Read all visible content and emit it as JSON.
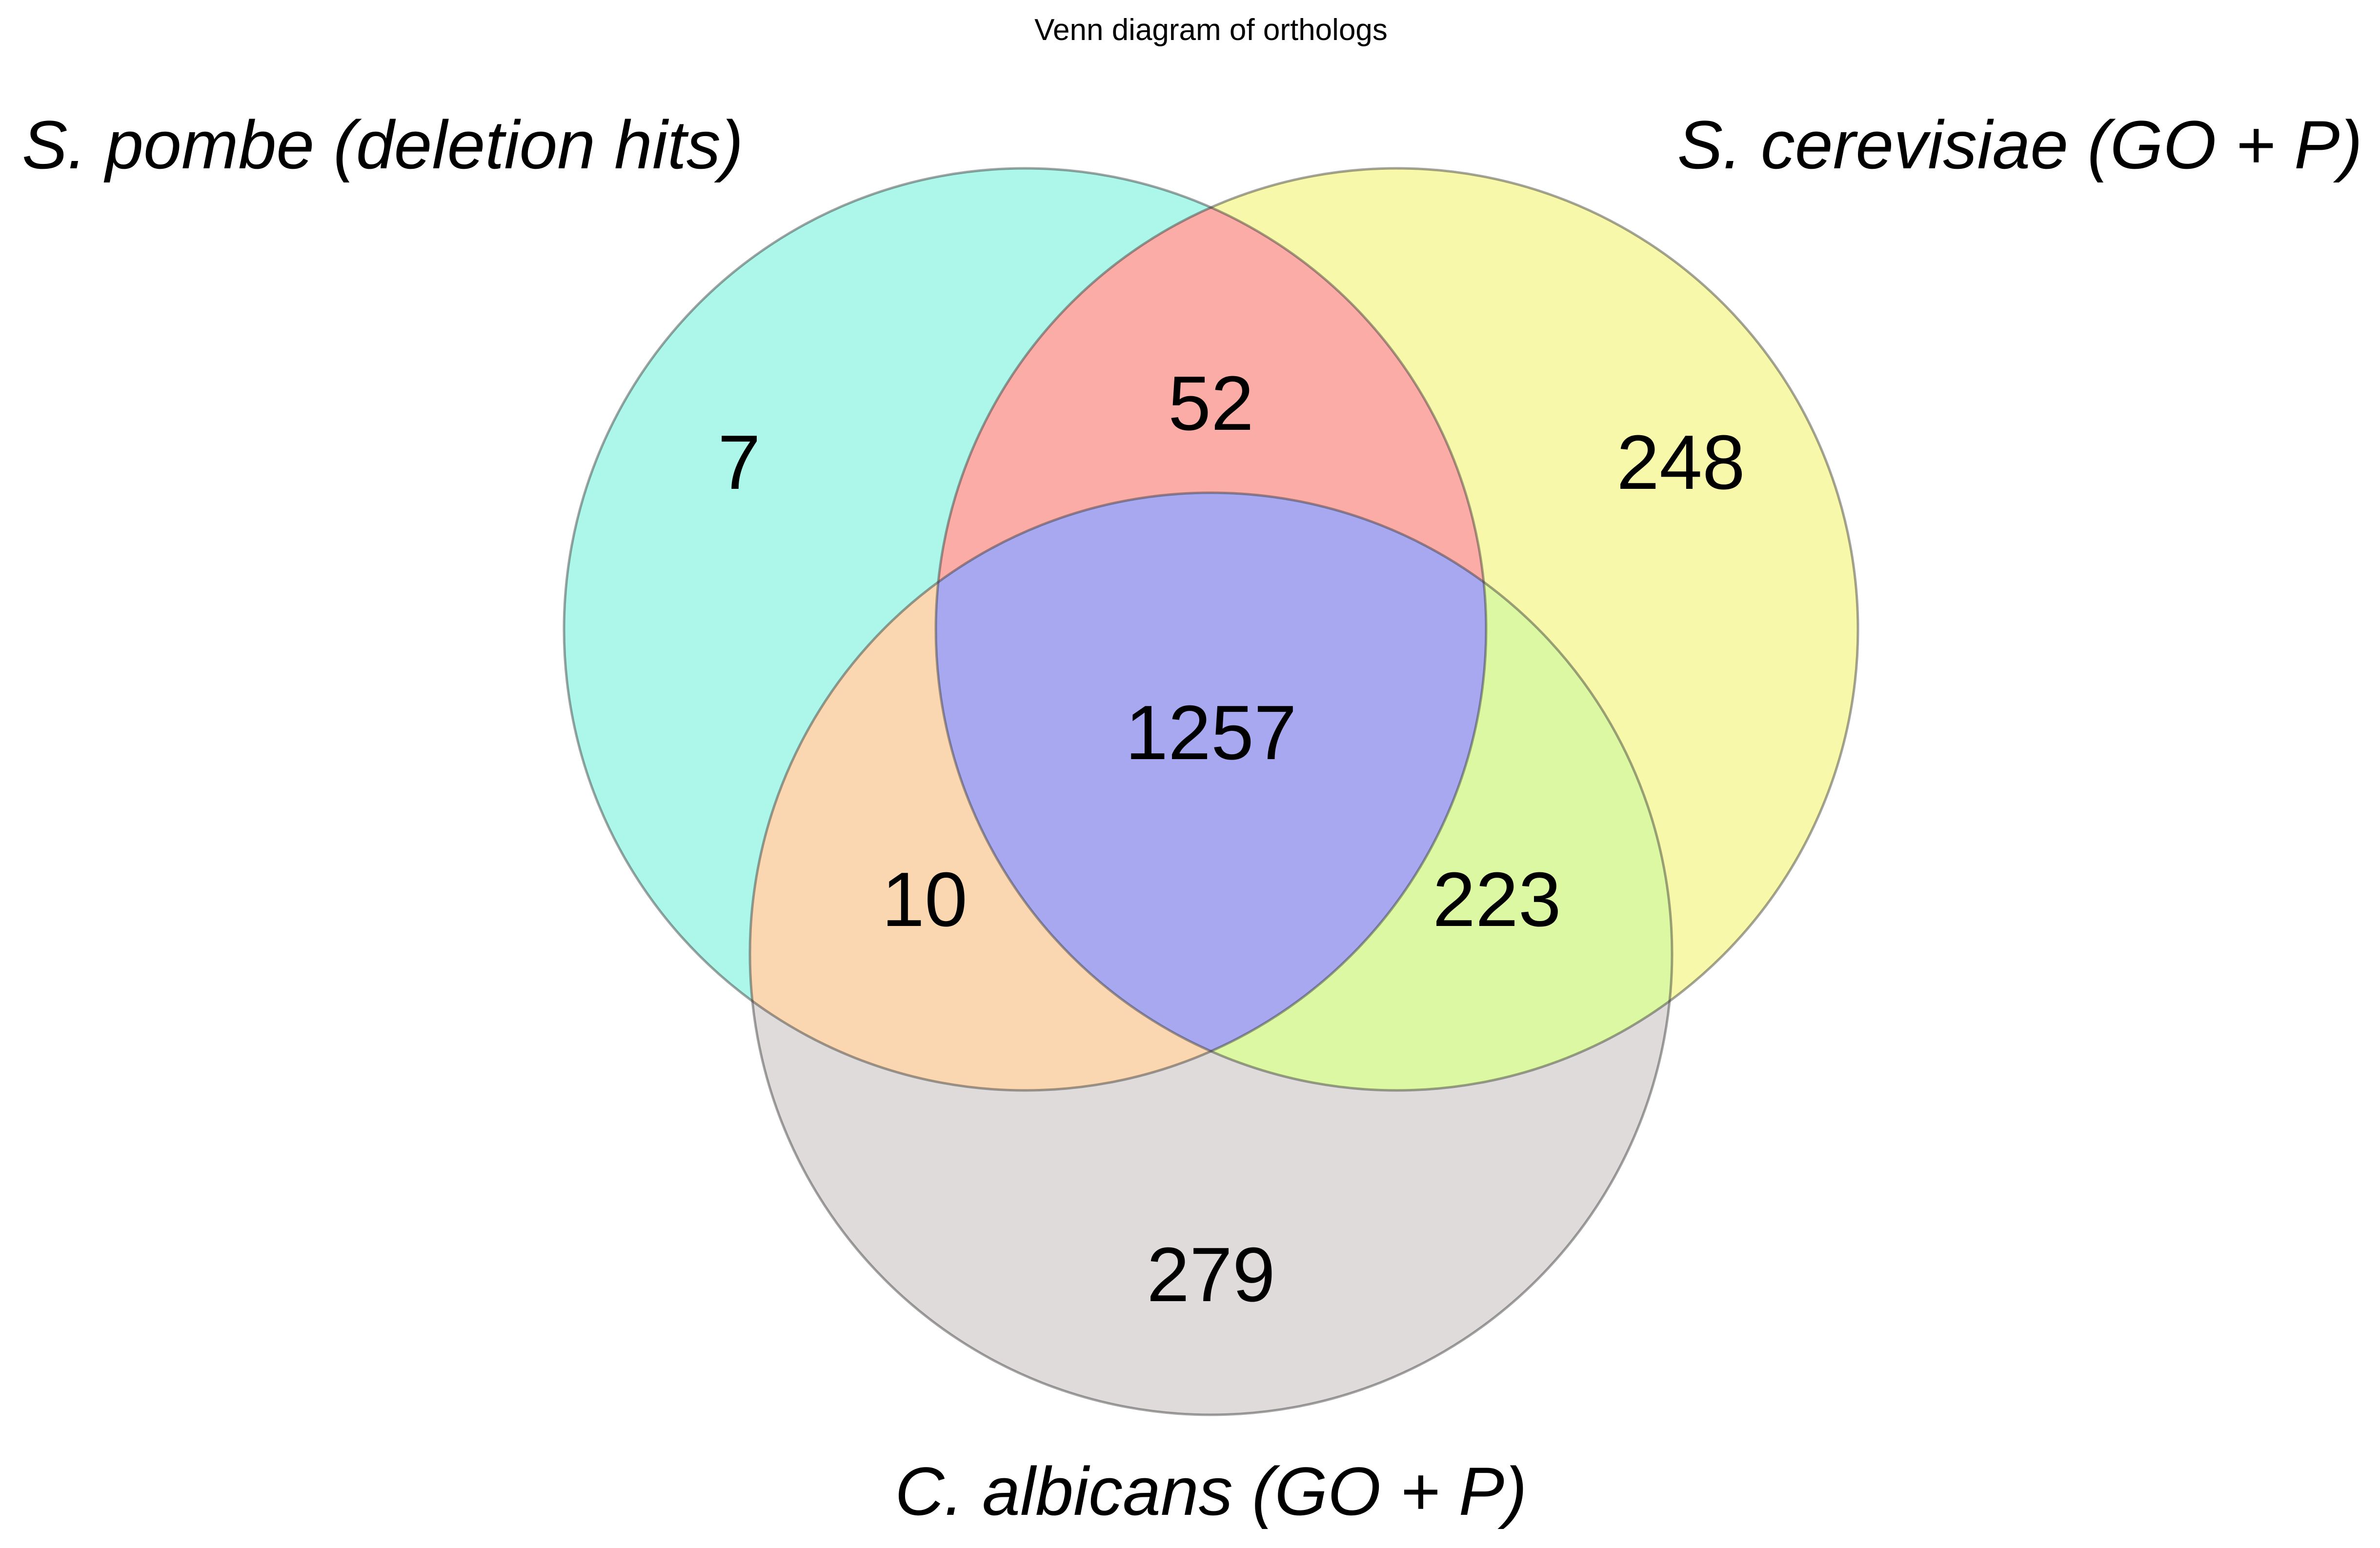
{
  "title": "Venn diagram of orthologs",
  "sets": [
    {
      "key": "A",
      "label": "S. pombe (deletion hits)"
    },
    {
      "key": "B",
      "label": "S. cerevisiae (GO + P)"
    },
    {
      "key": "C",
      "label": "C. albicans (GO + P)"
    }
  ],
  "regions": {
    "A_only": "7",
    "B_only": "248",
    "C_only": "279",
    "AB_only": "52",
    "AC_only": "10",
    "BC_only": "223",
    "ABC": "1257"
  },
  "chart_data": {
    "type": "venn",
    "title": "Venn diagram of orthologs",
    "sets": [
      "S. pombe (deletion hits)",
      "S. cerevisiae (GO + P)",
      "C. albicans (GO + P)"
    ],
    "subsets": {
      "100": 7,
      "010": 248,
      "001": 279,
      "110": 52,
      "101": 10,
      "011": 223,
      "111": 1257
    }
  },
  "colors": {
    "A_only": "#adf6ea",
    "B_only": "#f8f8aa",
    "C_only": "#dfdbda",
    "AB_only": "#fbaca6",
    "AC_only": "#fad7b0",
    "BC_only": "#dcf8a2",
    "ABC": "#a7a8f0",
    "outline": "#333333"
  }
}
